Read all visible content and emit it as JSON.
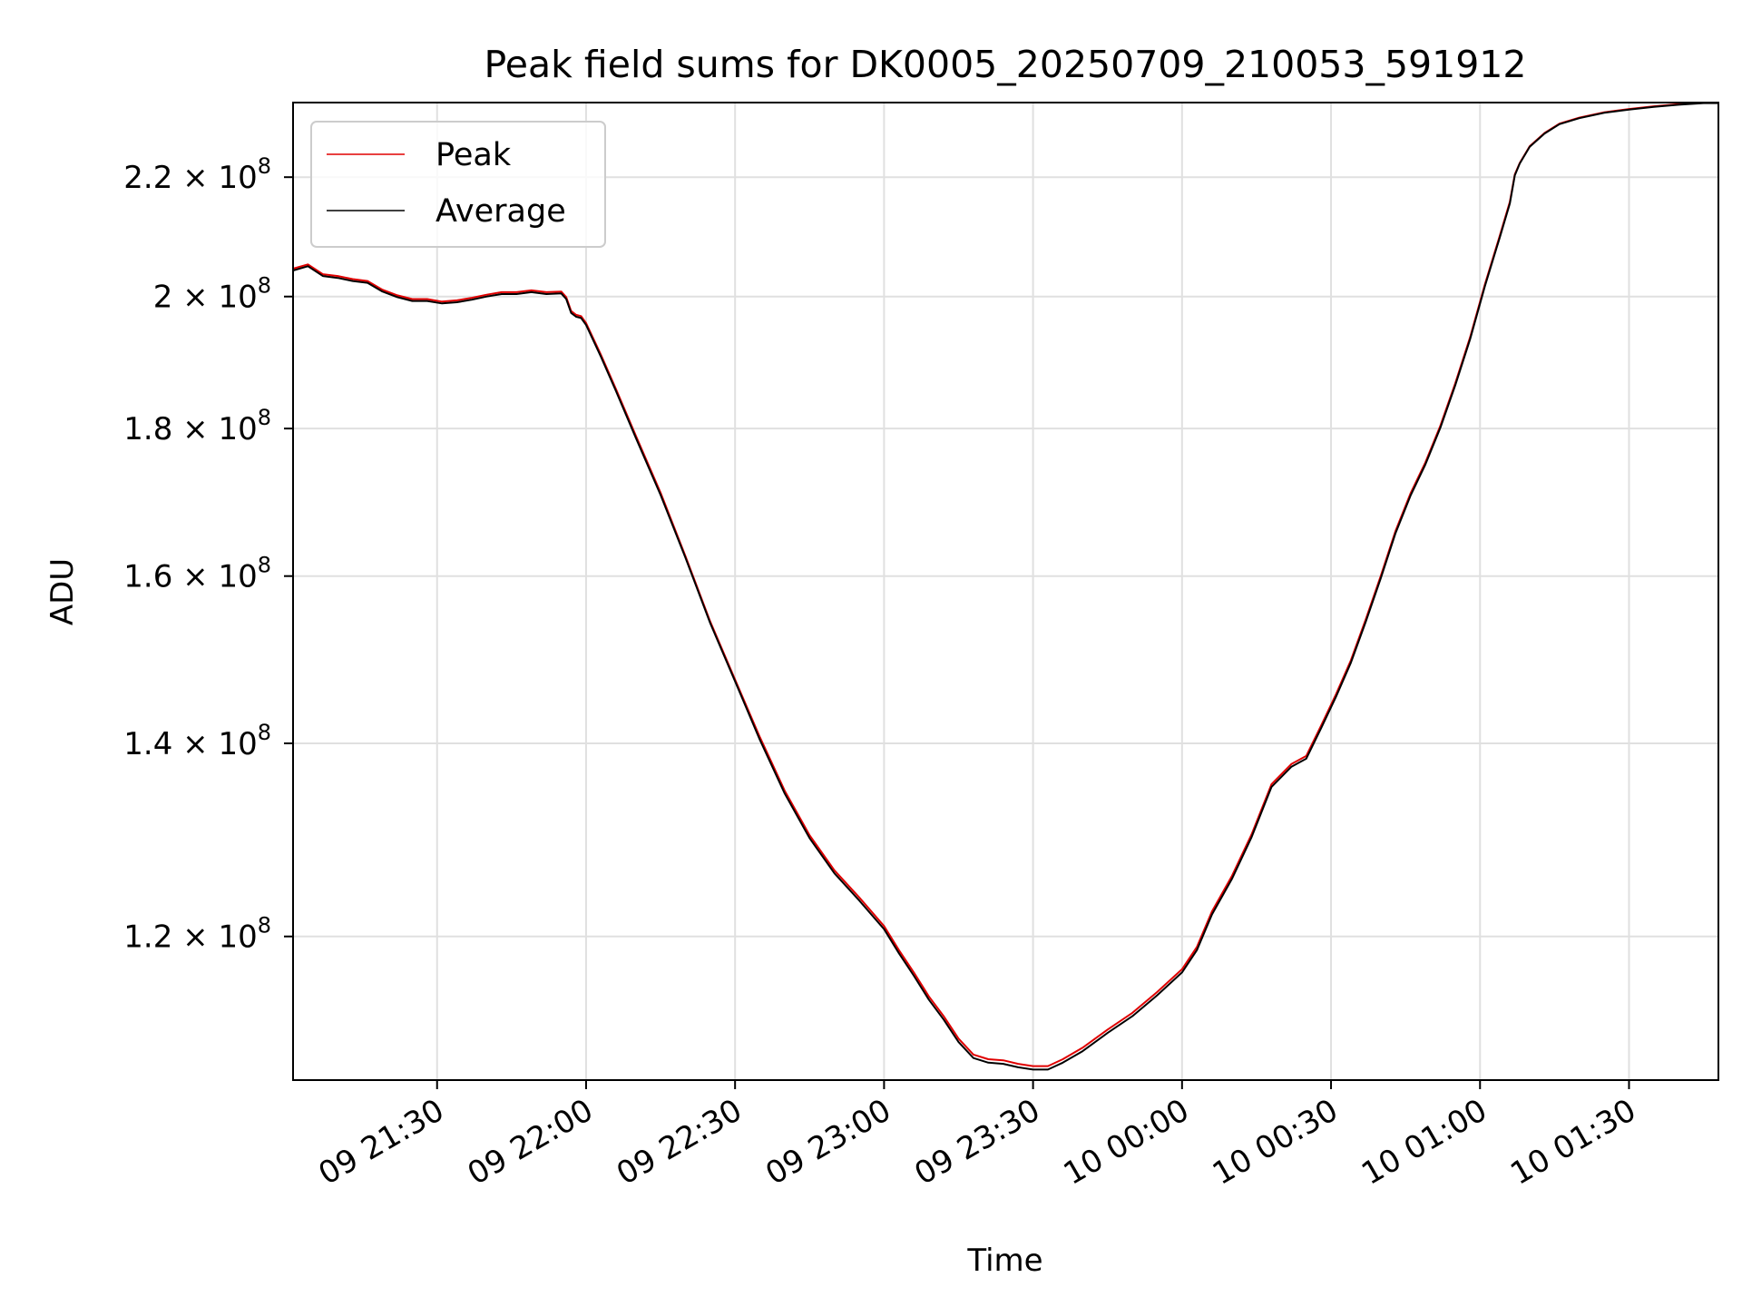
{
  "chart_data": {
    "type": "line",
    "title": "Peak field sums for DK0005_20250709_210053_591912",
    "xlabel": "Time",
    "ylabel": "ADU",
    "y_scale": "log",
    "ylim": [
      107000000,
      233500000
    ],
    "xlim": [
      "2025-07-09 21:01",
      "2025-07-10 01:48"
    ],
    "grid": true,
    "legend_position": "upper left",
    "x_ticks": [
      {
        "time": "2025-07-09 21:30",
        "label": "09 21:30"
      },
      {
        "time": "2025-07-09 22:00",
        "label": "09 22:00"
      },
      {
        "time": "2025-07-09 22:30",
        "label": "09 22:30"
      },
      {
        "time": "2025-07-09 23:00",
        "label": "09 23:00"
      },
      {
        "time": "2025-07-09 23:30",
        "label": "09 23:30"
      },
      {
        "time": "2025-07-10 00:00",
        "label": "10 00:00"
      },
      {
        "time": "2025-07-10 00:30",
        "label": "10 00:30"
      },
      {
        "time": "2025-07-10 01:00",
        "label": "10 01:00"
      },
      {
        "time": "2025-07-10 01:30",
        "label": "10 01:30"
      }
    ],
    "y_ticks": [
      {
        "value": 120000000,
        "mantissa": "1.2"
      },
      {
        "value": 140000000,
        "mantissa": "1.4"
      },
      {
        "value": 160000000,
        "mantissa": "1.6"
      },
      {
        "value": 180000000,
        "mantissa": "1.8"
      },
      {
        "value": 200000000,
        "mantissa": "2"
      },
      {
        "value": 220000000,
        "mantissa": "2.2"
      }
    ],
    "y_tick_suffix": "× 10",
    "y_tick_exponent": "8",
    "series": [
      {
        "name": "Peak",
        "color": "#e00000",
        "x": [
          "2025-07-09 21:01",
          "2025-07-09 21:04",
          "2025-07-09 21:07",
          "2025-07-09 21:10",
          "2025-07-09 21:13",
          "2025-07-09 21:16",
          "2025-07-09 21:19",
          "2025-07-09 21:22",
          "2025-07-09 21:25",
          "2025-07-09 21:28",
          "2025-07-09 21:31",
          "2025-07-09 21:34",
          "2025-07-09 21:37",
          "2025-07-09 21:40",
          "2025-07-09 21:43",
          "2025-07-09 21:46",
          "2025-07-09 21:49",
          "2025-07-09 21:52",
          "2025-07-09 21:55",
          "2025-07-09 21:56",
          "2025-07-09 21:57",
          "2025-07-09 21:58",
          "2025-07-09 21:59",
          "2025-07-09 22:00",
          "2025-07-09 22:03",
          "2025-07-09 22:06",
          "2025-07-09 22:10",
          "2025-07-09 22:15",
          "2025-07-09 22:20",
          "2025-07-09 22:25",
          "2025-07-09 22:30",
          "2025-07-09 22:35",
          "2025-07-09 22:40",
          "2025-07-09 22:45",
          "2025-07-09 22:50",
          "2025-07-09 22:55",
          "2025-07-09 23:00",
          "2025-07-09 23:03",
          "2025-07-09 23:06",
          "2025-07-09 23:09",
          "2025-07-09 23:12",
          "2025-07-09 23:15",
          "2025-07-09 23:18",
          "2025-07-09 23:21",
          "2025-07-09 23:24",
          "2025-07-09 23:27",
          "2025-07-09 23:30",
          "2025-07-09 23:33",
          "2025-07-09 23:36",
          "2025-07-09 23:40",
          "2025-07-09 23:45",
          "2025-07-09 23:50",
          "2025-07-09 23:55",
          "2025-07-10 00:00",
          "2025-07-10 00:03",
          "2025-07-10 00:06",
          "2025-07-10 00:10",
          "2025-07-10 00:14",
          "2025-07-10 00:18",
          "2025-07-10 00:22",
          "2025-07-10 00:25",
          "2025-07-10 00:28",
          "2025-07-10 00:31",
          "2025-07-10 00:34",
          "2025-07-10 00:37",
          "2025-07-10 00:40",
          "2025-07-10 00:43",
          "2025-07-10 00:46",
          "2025-07-10 00:49",
          "2025-07-10 00:52",
          "2025-07-10 00:55",
          "2025-07-10 00:58",
          "2025-07-10 01:01",
          "2025-07-10 01:04",
          "2025-07-10 01:06",
          "2025-07-10 01:07",
          "2025-07-10 01:08",
          "2025-07-10 01:10",
          "2025-07-10 01:13",
          "2025-07-10 01:16",
          "2025-07-10 01:20",
          "2025-07-10 01:25",
          "2025-07-10 01:30",
          "2025-07-10 01:35",
          "2025-07-10 01:40",
          "2025-07-10 01:45",
          "2025-07-10 01:48"
        ],
        "y": [
          204500000,
          205200000,
          203600000,
          203300000,
          202800000,
          202500000,
          201100000,
          200200000,
          199600000,
          199600000,
          199200000,
          199400000,
          199800000,
          200300000,
          200700000,
          200700000,
          201000000,
          200700000,
          200800000,
          199900000,
          197700000,
          197100000,
          196900000,
          195800000,
          190900000,
          185800000,
          179000000,
          171000000,
          162600000,
          154300000,
          147300000,
          140700000,
          134800000,
          130100000,
          126500000,
          123800000,
          121000000,
          118700000,
          116600000,
          114400000,
          112600000,
          110600000,
          109200000,
          108800000,
          108700000,
          108400000,
          108200000,
          108200000,
          108800000,
          109800000,
          111400000,
          112900000,
          114800000,
          116900000,
          119000000,
          122400000,
          125900000,
          130200000,
          135500000,
          137700000,
          138600000,
          142000000,
          145600000,
          149600000,
          154600000,
          160000000,
          165900000,
          170900000,
          175200000,
          180400000,
          186600000,
          193600000,
          202000000,
          210000000,
          215700000,
          220500000,
          222500000,
          225500000,
          227900000,
          229600000,
          230700000,
          231700000,
          232300000,
          232800000,
          233200000,
          233500000,
          233500000
        ]
      },
      {
        "name": "Average",
        "color": "#000000",
        "x": [
          "2025-07-09 21:01",
          "2025-07-09 21:04",
          "2025-07-09 21:07",
          "2025-07-09 21:10",
          "2025-07-09 21:13",
          "2025-07-09 21:16",
          "2025-07-09 21:19",
          "2025-07-09 21:22",
          "2025-07-09 21:25",
          "2025-07-09 21:28",
          "2025-07-09 21:31",
          "2025-07-09 21:34",
          "2025-07-09 21:37",
          "2025-07-09 21:40",
          "2025-07-09 21:43",
          "2025-07-09 21:46",
          "2025-07-09 21:49",
          "2025-07-09 21:52",
          "2025-07-09 21:55",
          "2025-07-09 21:56",
          "2025-07-09 21:57",
          "2025-07-09 21:58",
          "2025-07-09 21:59",
          "2025-07-09 22:00",
          "2025-07-09 22:03",
          "2025-07-09 22:06",
          "2025-07-09 22:10",
          "2025-07-09 22:15",
          "2025-07-09 22:20",
          "2025-07-09 22:25",
          "2025-07-09 22:30",
          "2025-07-09 22:35",
          "2025-07-09 22:40",
          "2025-07-09 22:45",
          "2025-07-09 22:50",
          "2025-07-09 22:55",
          "2025-07-09 23:00",
          "2025-07-09 23:03",
          "2025-07-09 23:06",
          "2025-07-09 23:09",
          "2025-07-09 23:12",
          "2025-07-09 23:15",
          "2025-07-09 23:18",
          "2025-07-09 23:21",
          "2025-07-09 23:24",
          "2025-07-09 23:27",
          "2025-07-09 23:30",
          "2025-07-09 23:33",
          "2025-07-09 23:36",
          "2025-07-09 23:40",
          "2025-07-09 23:45",
          "2025-07-09 23:50",
          "2025-07-09 23:55",
          "2025-07-10 00:00",
          "2025-07-10 00:03",
          "2025-07-10 00:06",
          "2025-07-10 00:10",
          "2025-07-10 00:14",
          "2025-07-10 00:18",
          "2025-07-10 00:22",
          "2025-07-10 00:25",
          "2025-07-10 00:28",
          "2025-07-10 00:31",
          "2025-07-10 00:34",
          "2025-07-10 00:37",
          "2025-07-10 00:40",
          "2025-07-10 00:43",
          "2025-07-10 00:46",
          "2025-07-10 00:49",
          "2025-07-10 00:52",
          "2025-07-10 00:55",
          "2025-07-10 00:58",
          "2025-07-10 01:01",
          "2025-07-10 01:04",
          "2025-07-10 01:06",
          "2025-07-10 01:07",
          "2025-07-10 01:08",
          "2025-07-10 01:10",
          "2025-07-10 01:13",
          "2025-07-10 01:16",
          "2025-07-10 01:20",
          "2025-07-10 01:25",
          "2025-07-10 01:30",
          "2025-07-10 01:35",
          "2025-07-10 01:40",
          "2025-07-10 01:45",
          "2025-07-10 01:48"
        ],
        "y": [
          204200000,
          204900000,
          203300000,
          203000000,
          202500000,
          202200000,
          200800000,
          199900000,
          199300000,
          199300000,
          198900000,
          199100000,
          199500000,
          200000000,
          200400000,
          200400000,
          200700000,
          200400000,
          200500000,
          199600000,
          197400000,
          196800000,
          196600000,
          195500000,
          190600000,
          185500000,
          178700000,
          170700000,
          162400000,
          154100000,
          147100000,
          140400000,
          134500000,
          129800000,
          126200000,
          123500000,
          120700000,
          118400000,
          116300000,
          114100000,
          112300000,
          110300000,
          108900000,
          108500000,
          108400000,
          108100000,
          107900000,
          107900000,
          108500000,
          109500000,
          111100000,
          112600000,
          114500000,
          116600000,
          118700000,
          122100000,
          125600000,
          129900000,
          135200000,
          137400000,
          138300000,
          141700000,
          145300000,
          149300000,
          154300000,
          159700000,
          165600000,
          170600000,
          174900000,
          180100000,
          186300000,
          193300000,
          201700000,
          209700000,
          215400000,
          220300000,
          222400000,
          225400000,
          227800000,
          229500000,
          230600000,
          231600000,
          232200000,
          232700000,
          233100000,
          233400000,
          233400000
        ]
      }
    ]
  }
}
